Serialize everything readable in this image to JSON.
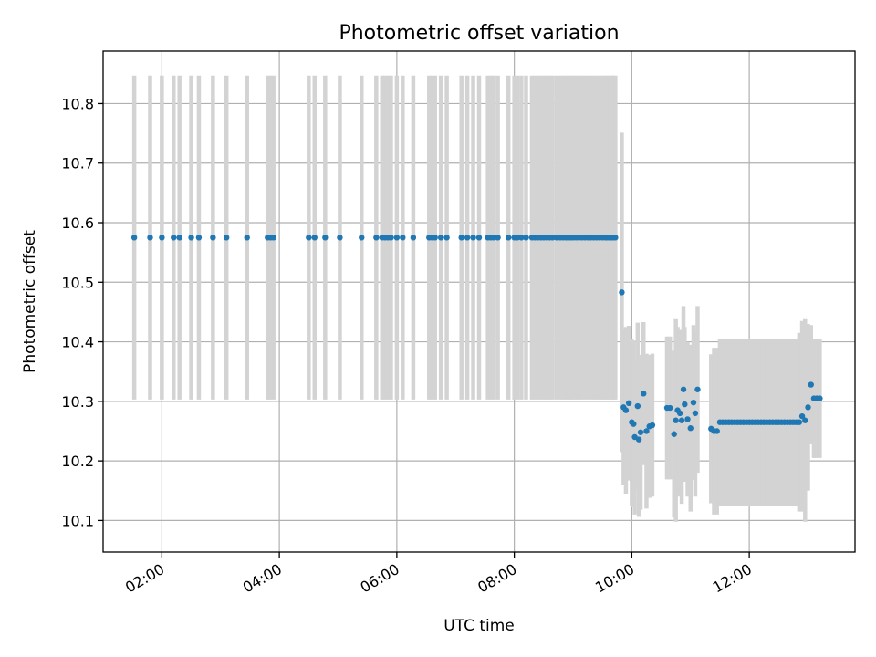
{
  "chart_data": {
    "type": "scatter",
    "title": "Photometric offset variation",
    "xlabel": "UTC time",
    "ylabel": "Photometric offset",
    "xlim": [
      1.0,
      13.8
    ],
    "ylim": [
      10.047,
      10.888
    ],
    "x_ticks": [
      {
        "value": 2,
        "label": "02:00"
      },
      {
        "value": 4,
        "label": "04:00"
      },
      {
        "value": 6,
        "label": "06:00"
      },
      {
        "value": 8,
        "label": "08:00"
      },
      {
        "value": 10,
        "label": "10:00"
      },
      {
        "value": 12,
        "label": "12:00"
      }
    ],
    "y_ticks": [
      {
        "value": 10.1,
        "label": "10.1"
      },
      {
        "value": 10.2,
        "label": "10.2"
      },
      {
        "value": 10.3,
        "label": "10.3"
      },
      {
        "value": 10.4,
        "label": "10.4"
      },
      {
        "value": 10.5,
        "label": "10.5"
      },
      {
        "value": 10.6,
        "label": "10.6"
      },
      {
        "value": 10.7,
        "label": "10.7"
      },
      {
        "value": 10.8,
        "label": "10.8"
      }
    ],
    "grid": true,
    "marker_color": "#1f77b4",
    "errorbar_color": "#d3d3d3",
    "series": [
      {
        "x": [
          1.53,
          1.8,
          2.0,
          2.2,
          2.3,
          2.5,
          2.63,
          2.87,
          3.1,
          3.45,
          3.8,
          3.85,
          3.9,
          4.5,
          4.6,
          4.78,
          5.03,
          5.4,
          5.65,
          5.75,
          5.8,
          5.85,
          5.9,
          6.0,
          6.1,
          6.28,
          6.55,
          6.6,
          6.65,
          6.75,
          6.85,
          7.1,
          7.2,
          7.3,
          7.4,
          7.55,
          7.6,
          7.65,
          7.72,
          7.9,
          8.0,
          8.05,
          8.12,
          8.2,
          8.3,
          8.35,
          8.4,
          8.45,
          8.5,
          8.55,
          8.6,
          8.65,
          8.72,
          8.78,
          8.83,
          8.88,
          8.92,
          8.96,
          9.0,
          9.05,
          9.1,
          9.15,
          9.2,
          9.25,
          9.3,
          9.35,
          9.4,
          9.45,
          9.5,
          9.55,
          9.58,
          9.62,
          9.65,
          9.68,
          9.72
        ],
        "y": [
          10.575,
          10.575,
          10.575,
          10.575,
          10.575,
          10.575,
          10.575,
          10.575,
          10.575,
          10.575,
          10.575,
          10.575,
          10.575,
          10.575,
          10.575,
          10.575,
          10.575,
          10.575,
          10.575,
          10.575,
          10.575,
          10.575,
          10.575,
          10.575,
          10.575,
          10.575,
          10.575,
          10.575,
          10.575,
          10.575,
          10.575,
          10.575,
          10.575,
          10.575,
          10.575,
          10.575,
          10.575,
          10.575,
          10.575,
          10.575,
          10.575,
          10.575,
          10.575,
          10.575,
          10.575,
          10.575,
          10.575,
          10.575,
          10.575,
          10.575,
          10.575,
          10.575,
          10.575,
          10.575,
          10.575,
          10.575,
          10.575,
          10.575,
          10.575,
          10.575,
          10.575,
          10.575,
          10.575,
          10.575,
          10.575,
          10.575,
          10.575,
          10.575,
          10.575,
          10.575,
          10.575,
          10.575,
          10.575,
          10.575,
          10.575
        ],
        "yerr": [
          0.272,
          0.272,
          0.272,
          0.272,
          0.272,
          0.272,
          0.272,
          0.272,
          0.272,
          0.272,
          0.272,
          0.272,
          0.272,
          0.272,
          0.272,
          0.272,
          0.272,
          0.272,
          0.272,
          0.272,
          0.272,
          0.272,
          0.272,
          0.272,
          0.272,
          0.272,
          0.272,
          0.272,
          0.272,
          0.272,
          0.272,
          0.272,
          0.272,
          0.272,
          0.272,
          0.272,
          0.272,
          0.272,
          0.272,
          0.272,
          0.272,
          0.272,
          0.272,
          0.272,
          0.272,
          0.272,
          0.272,
          0.272,
          0.272,
          0.272,
          0.272,
          0.272,
          0.272,
          0.272,
          0.272,
          0.272,
          0.272,
          0.272,
          0.272,
          0.272,
          0.272,
          0.272,
          0.272,
          0.272,
          0.272,
          0.272,
          0.272,
          0.272,
          0.272,
          0.272,
          0.272,
          0.272,
          0.272,
          0.272,
          0.272
        ]
      },
      {
        "x": [
          9.83,
          9.86,
          9.9,
          9.95,
          10.0,
          10.03,
          10.05,
          10.1,
          10.12,
          10.15,
          10.2,
          10.25,
          10.3,
          10.35,
          10.6,
          10.65,
          10.72,
          10.75,
          10.78,
          10.82,
          10.85,
          10.88,
          10.9,
          10.95,
          11.0,
          11.05,
          11.08,
          11.12,
          11.35,
          11.4,
          11.45,
          11.5,
          11.55,
          11.6,
          11.65,
          11.7,
          11.75,
          11.8,
          11.85,
          11.9,
          11.95,
          12.0,
          12.05,
          12.1,
          12.15,
          12.2,
          12.25,
          12.3,
          12.35,
          12.4,
          12.45,
          12.5,
          12.55,
          12.6,
          12.65,
          12.7,
          12.75,
          12.8,
          12.85,
          12.9,
          12.95,
          13.0,
          13.05,
          13.1,
          13.15,
          13.2
        ],
        "y": [
          10.483,
          10.29,
          10.285,
          10.297,
          10.265,
          10.262,
          10.24,
          10.292,
          10.236,
          10.248,
          10.313,
          10.25,
          10.258,
          10.26,
          10.289,
          10.289,
          10.245,
          10.268,
          10.285,
          10.28,
          10.268,
          10.32,
          10.295,
          10.27,
          10.255,
          10.298,
          10.28,
          10.32,
          10.254,
          10.25,
          10.25,
          10.265,
          10.265,
          10.265,
          10.265,
          10.265,
          10.265,
          10.265,
          10.265,
          10.265,
          10.265,
          10.265,
          10.265,
          10.265,
          10.265,
          10.265,
          10.265,
          10.265,
          10.265,
          10.265,
          10.265,
          10.265,
          10.265,
          10.265,
          10.265,
          10.265,
          10.265,
          10.265,
          10.265,
          10.275,
          10.268,
          10.29,
          10.328,
          10.305,
          10.305,
          10.305
        ],
        "yerr": [
          0.268,
          0.13,
          0.14,
          0.13,
          0.14,
          0.14,
          0.13,
          0.14,
          0.13,
          0.13,
          0.12,
          0.13,
          0.12,
          0.12,
          0.12,
          0.12,
          0.14,
          0.17,
          0.14,
          0.14,
          0.14,
          0.14,
          0.13,
          0.13,
          0.14,
          0.13,
          0.14,
          0.14,
          0.125,
          0.14,
          0.14,
          0.14,
          0.14,
          0.14,
          0.14,
          0.14,
          0.14,
          0.14,
          0.14,
          0.14,
          0.14,
          0.14,
          0.14,
          0.14,
          0.14,
          0.14,
          0.14,
          0.14,
          0.14,
          0.14,
          0.14,
          0.14,
          0.14,
          0.14,
          0.14,
          0.14,
          0.14,
          0.14,
          0.15,
          0.16,
          0.17,
          0.14,
          0.1,
          0.1,
          0.1,
          0.1
        ]
      }
    ]
  }
}
